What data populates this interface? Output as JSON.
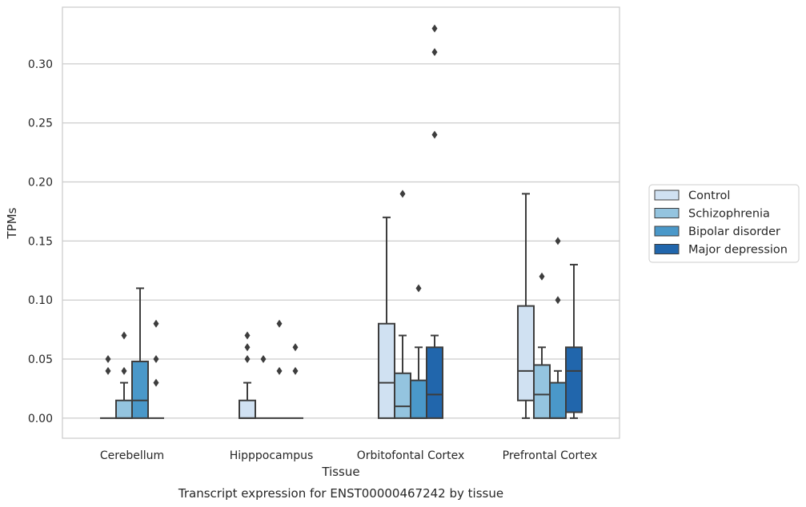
{
  "chart_data": {
    "type": "box",
    "title": "",
    "caption": "Transcript expression for ENST00000467242 by tissue",
    "xlabel": "Tissue",
    "ylabel": "TPMs",
    "ylim": [
      -0.017,
      0.348
    ],
    "yticks": [
      0.0,
      0.05,
      0.1,
      0.15,
      0.2,
      0.25,
      0.3
    ],
    "ytick_labels": [
      "0.00",
      "0.05",
      "0.10",
      "0.15",
      "0.20",
      "0.25",
      "0.30"
    ],
    "grid": true,
    "legend_position": "right",
    "categories": [
      "Cerebellum",
      "Hipppocampus",
      "Orbitofontal Cortex",
      "Prefrontal Cortex"
    ],
    "series": [
      {
        "name": "Control",
        "color": "#d0e1f2",
        "boxes": [
          {
            "q1": 0.0,
            "median": 0.0,
            "q3": 0.0,
            "whisker_low": 0.0,
            "whisker_high": 0.0,
            "outliers": [
              0.04,
              0.05
            ]
          },
          {
            "q1": 0.0,
            "median": 0.0,
            "q3": 0.015,
            "whisker_low": 0.0,
            "whisker_high": 0.03,
            "outliers": [
              0.05,
              0.06,
              0.07
            ]
          },
          {
            "q1": 0.0,
            "median": 0.03,
            "q3": 0.08,
            "whisker_low": 0.0,
            "whisker_high": 0.17,
            "outliers": []
          },
          {
            "q1": 0.015,
            "median": 0.04,
            "q3": 0.095,
            "whisker_low": 0.0,
            "whisker_high": 0.19,
            "outliers": []
          }
        ]
      },
      {
        "name": "Schizophrenia",
        "color": "#94c4df",
        "boxes": [
          {
            "q1": 0.0,
            "median": 0.0,
            "q3": 0.015,
            "whisker_low": 0.0,
            "whisker_high": 0.03,
            "outliers": [
              0.04,
              0.07
            ]
          },
          {
            "q1": 0.0,
            "median": 0.0,
            "q3": 0.0,
            "whisker_low": 0.0,
            "whisker_high": 0.0,
            "outliers": [
              0.05
            ]
          },
          {
            "q1": 0.0,
            "median": 0.01,
            "q3": 0.038,
            "whisker_low": 0.0,
            "whisker_high": 0.07,
            "outliers": [
              0.19
            ]
          },
          {
            "q1": 0.0,
            "median": 0.02,
            "q3": 0.045,
            "whisker_low": 0.0,
            "whisker_high": 0.06,
            "outliers": [
              0.12
            ]
          }
        ]
      },
      {
        "name": "Bipolar disorder",
        "color": "#4a98c9",
        "boxes": [
          {
            "q1": 0.0,
            "median": 0.015,
            "q3": 0.048,
            "whisker_low": 0.0,
            "whisker_high": 0.11,
            "outliers": []
          },
          {
            "q1": 0.0,
            "median": 0.0,
            "q3": 0.0,
            "whisker_low": 0.0,
            "whisker_high": 0.0,
            "outliers": [
              0.04,
              0.08
            ]
          },
          {
            "q1": 0.0,
            "median": 0.0,
            "q3": 0.032,
            "whisker_low": 0.0,
            "whisker_high": 0.06,
            "outliers": [
              0.11
            ]
          },
          {
            "q1": 0.0,
            "median": 0.0,
            "q3": 0.03,
            "whisker_low": 0.0,
            "whisker_high": 0.04,
            "outliers": [
              0.1,
              0.15
            ]
          }
        ]
      },
      {
        "name": "Major depression",
        "color": "#2166ac",
        "boxes": [
          {
            "q1": 0.0,
            "median": 0.0,
            "q3": 0.0,
            "whisker_low": 0.0,
            "whisker_high": 0.0,
            "outliers": [
              0.03,
              0.05,
              0.08
            ]
          },
          {
            "q1": 0.0,
            "median": 0.0,
            "q3": 0.0,
            "whisker_low": 0.0,
            "whisker_high": 0.0,
            "outliers": [
              0.04,
              0.06
            ]
          },
          {
            "q1": 0.0,
            "median": 0.02,
            "q3": 0.06,
            "whisker_low": 0.0,
            "whisker_high": 0.07,
            "outliers": [
              0.24,
              0.31,
              0.33
            ]
          },
          {
            "q1": 0.005,
            "median": 0.04,
            "q3": 0.06,
            "whisker_low": 0.0,
            "whisker_high": 0.13,
            "outliers": []
          }
        ]
      }
    ]
  }
}
